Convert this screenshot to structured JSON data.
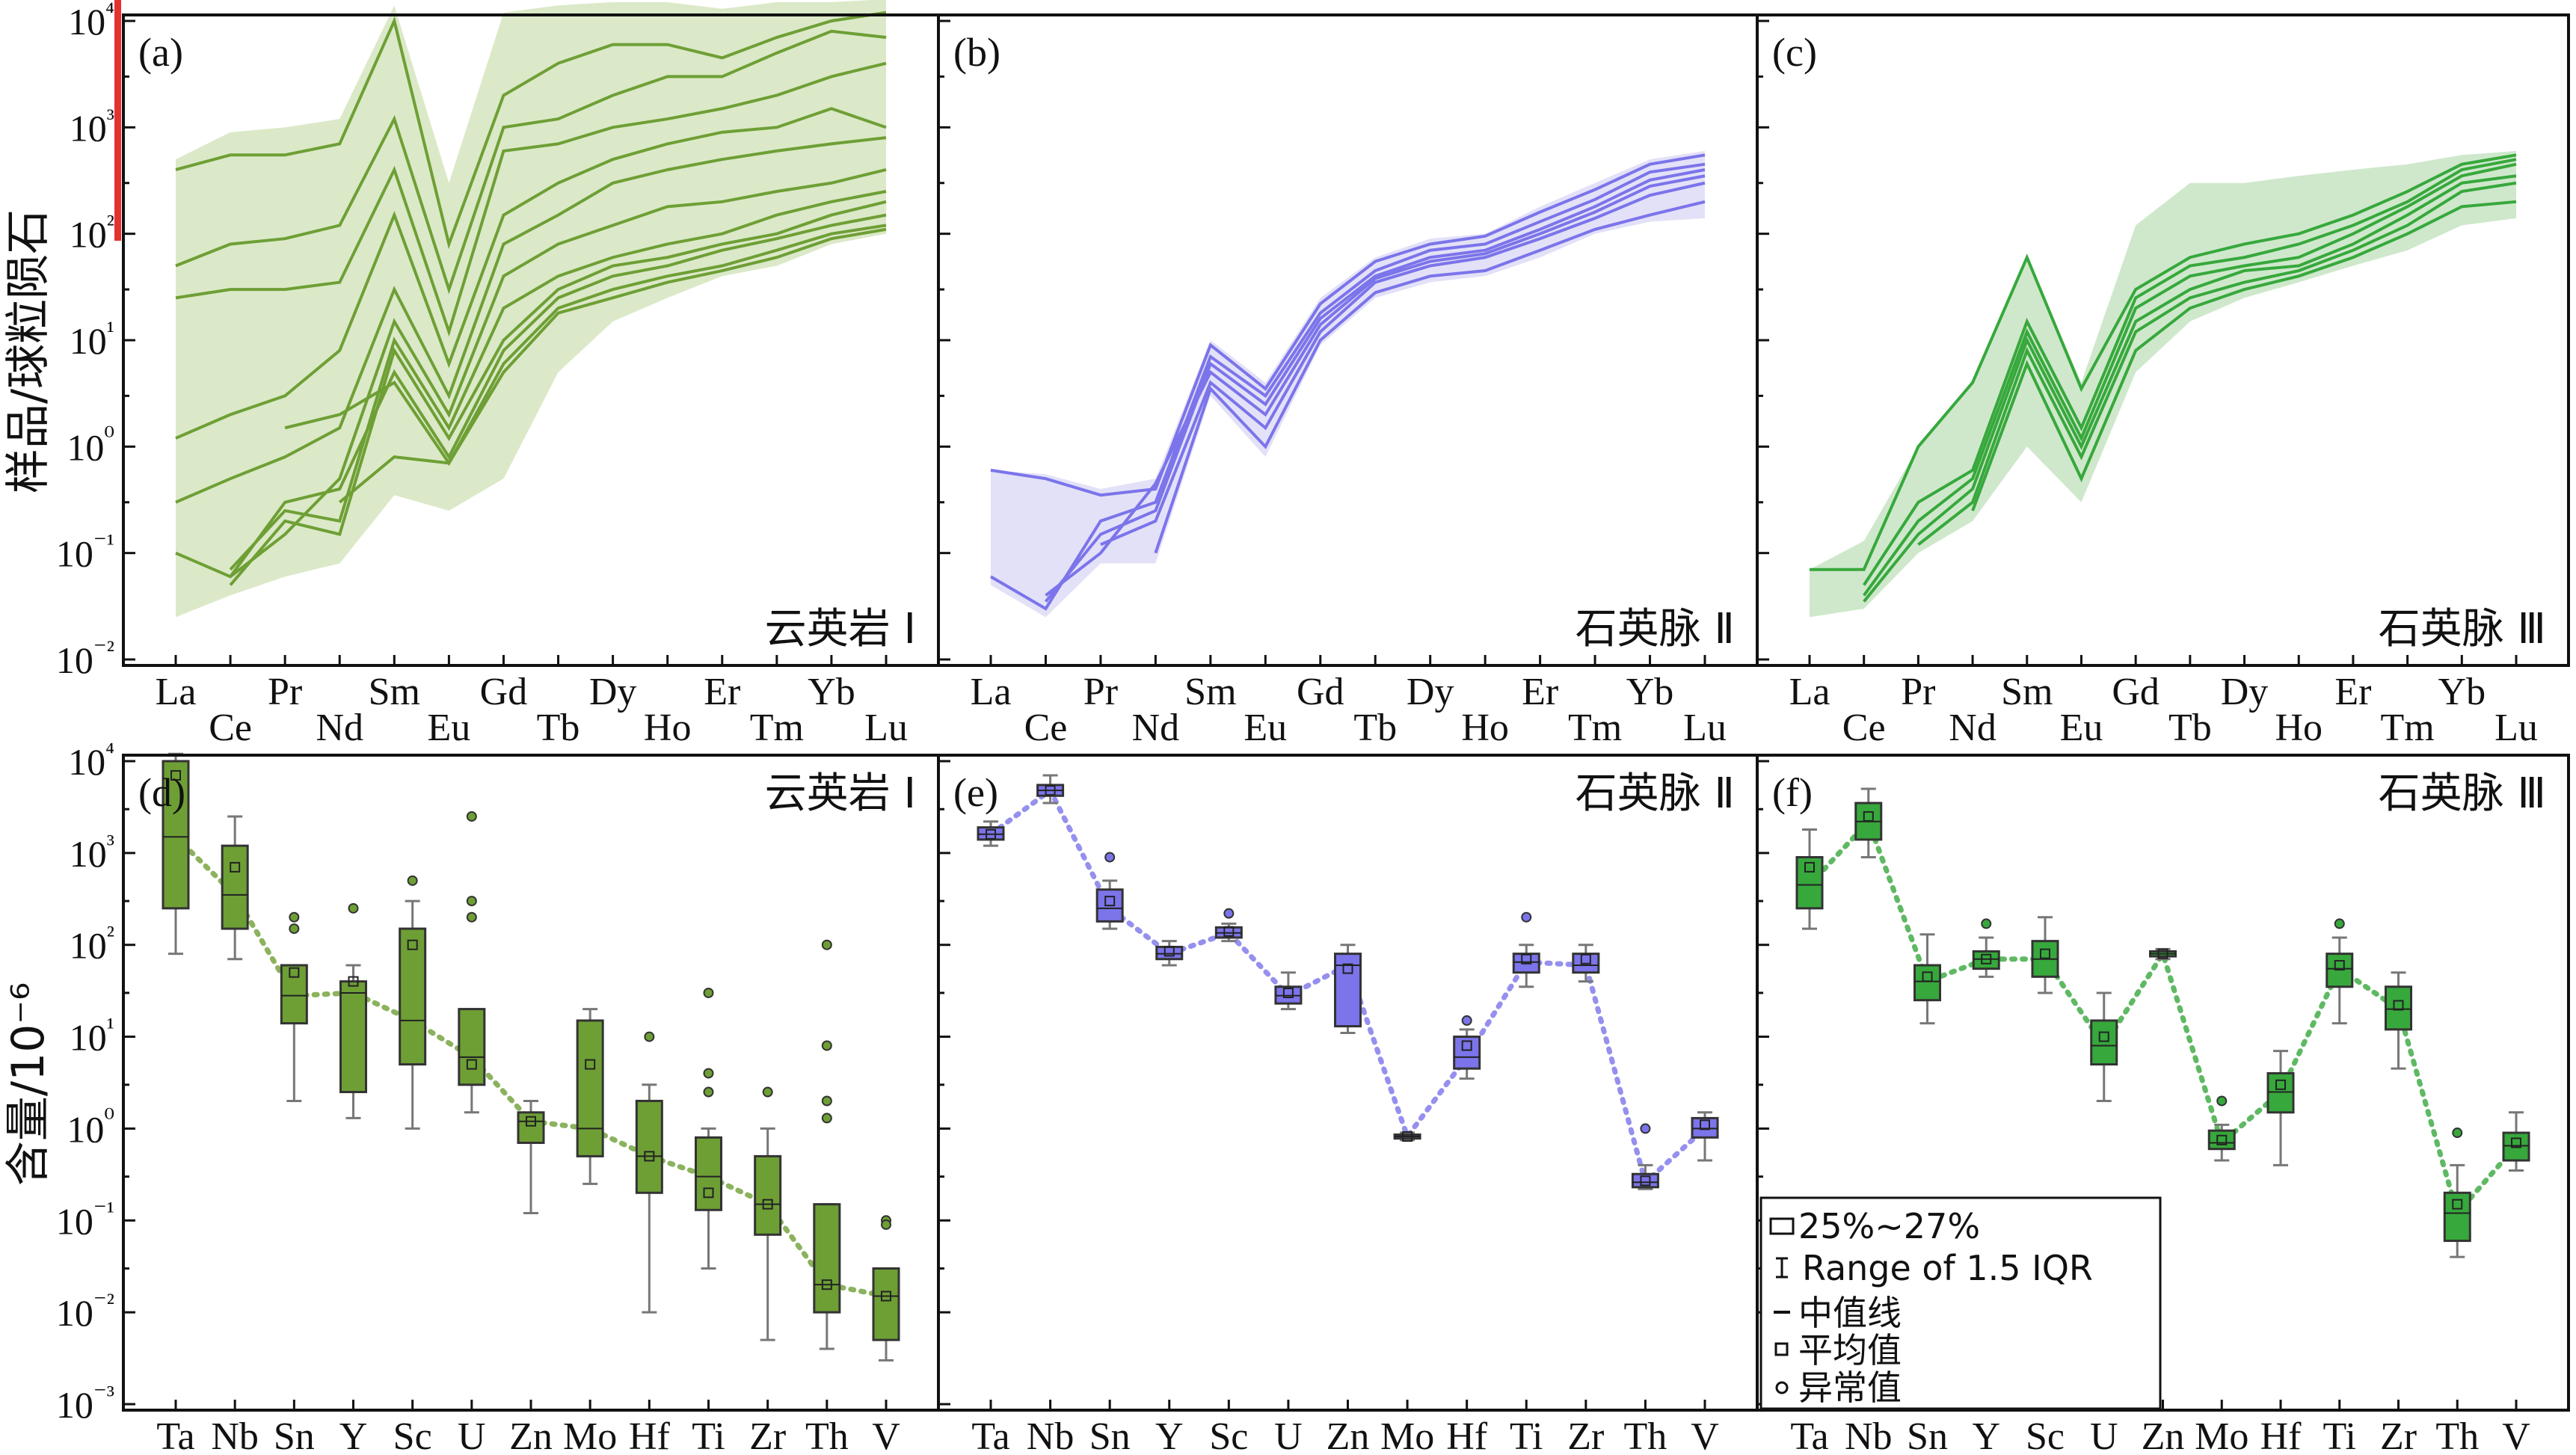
{
  "colors": {
    "green": "#6e9f35",
    "green_fill": "#dbe9c8",
    "purple": "#7b74ea",
    "purple_fill": "#e3e1f8",
    "bright_green": "#37a83c",
    "bright_green_fill": "#cfe8cc",
    "cursor_red": "#e53030"
  },
  "chart_data": [
    {
      "id": "a",
      "type": "line",
      "panel_label": "(a)",
      "rock_label": "云英岩 Ⅰ",
      "ylabel": "样品/球粒陨石",
      "yscale": "log",
      "ylim": [
        0.01,
        10000
      ],
      "y_ticks": [
        "10⁴",
        "10³",
        "10²",
        "10¹",
        "10⁰",
        "10⁻¹",
        "10⁻²"
      ],
      "categories": [
        "La",
        "Ce",
        "Pr",
        "Nd",
        "Sm",
        "Eu",
        "Gd",
        "Tb",
        "Dy",
        "Ho",
        "Er",
        "Tm",
        "Yb",
        "Lu"
      ],
      "envelope_max": [
        500,
        900,
        1000,
        1200,
        14000,
        300,
        12000,
        14000,
        15000,
        15000,
        13000,
        15000,
        15000,
        16000
      ],
      "envelope_min": [
        0.025,
        0.04,
        0.06,
        0.08,
        0.35,
        0.25,
        0.5,
        5,
        15,
        25,
        40,
        50,
        80,
        100
      ],
      "series": [
        {
          "values": [
            400,
            550,
            550,
            700,
            10000,
            80,
            2000,
            4000,
            6000,
            6000,
            4500,
            7000,
            10000,
            12000
          ]
        },
        {
          "values": [
            50,
            80,
            90,
            120,
            1200,
            30,
            1000,
            1200,
            2000,
            3000,
            3000,
            5000,
            8000,
            7000
          ]
        },
        {
          "values": [
            25,
            30,
            30,
            35,
            400,
            12,
            600,
            700,
            1000,
            1200,
            1500,
            2000,
            3000,
            4000
          ]
        },
        {
          "values": [
            1.2,
            2,
            3,
            8,
            150,
            6,
            150,
            300,
            500,
            700,
            900,
            1000,
            1500,
            1000
          ]
        },
        {
          "values": [
            0.3,
            0.5,
            0.8,
            1.5,
            30,
            3,
            80,
            150,
            300,
            400,
            500,
            600,
            700,
            800
          ]
        },
        {
          "values": [
            0.1,
            0.06,
            0.15,
            0.5,
            15,
            2,
            40,
            80,
            120,
            180,
            200,
            250,
            300,
            400
          ]
        },
        {
          "values": [
            null,
            0.07,
            0.25,
            0.2,
            10,
            1.5,
            20,
            40,
            60,
            80,
            100,
            150,
            200,
            250
          ]
        },
        {
          "values": [
            null,
            0.05,
            0.2,
            0.15,
            8,
            1.2,
            10,
            30,
            50,
            60,
            80,
            100,
            150,
            200
          ]
        },
        {
          "values": [
            null,
            0.06,
            0.3,
            0.4,
            5,
            0.8,
            8,
            25,
            40,
            50,
            70,
            90,
            120,
            150
          ]
        },
        {
          "values": [
            null,
            null,
            1.5,
            2,
            4,
            0.7,
            6,
            20,
            30,
            40,
            50,
            70,
            100,
            120
          ]
        },
        {
          "values": [
            null,
            null,
            null,
            0.3,
            0.8,
            0.7,
            5,
            18,
            25,
            35,
            45,
            60,
            90,
            110
          ]
        }
      ]
    },
    {
      "id": "b",
      "type": "line",
      "panel_label": "(b)",
      "rock_label": "石英脉 Ⅱ",
      "yscale": "log",
      "ylim": [
        0.01,
        10000
      ],
      "categories": [
        "La",
        "Ce",
        "Pr",
        "Nd",
        "Sm",
        "Eu",
        "Gd",
        "Tb",
        "Dy",
        "Ho",
        "Er",
        "Tm",
        "Yb",
        "Lu"
      ],
      "envelope_max": [
        0.6,
        0.55,
        0.4,
        0.5,
        10,
        4,
        25,
        60,
        90,
        100,
        180,
        300,
        500,
        600
      ],
      "envelope_min": [
        0.05,
        0.025,
        0.08,
        0.08,
        3,
        0.8,
        9,
        25,
        35,
        40,
        60,
        100,
        130,
        140
      ],
      "series": [
        {
          "values": [
            0.6,
            0.5,
            0.35,
            0.4,
            9,
            3.5,
            22,
            55,
            80,
            95,
            160,
            260,
            450,
            550
          ]
        },
        {
          "values": [
            0.06,
            0.03,
            0.2,
            0.3,
            7,
            3,
            18,
            45,
            70,
            80,
            130,
            210,
            380,
            450
          ]
        },
        {
          "values": [
            null,
            0.035,
            0.15,
            0.25,
            6,
            2.5,
            16,
            40,
            60,
            70,
            110,
            180,
            320,
            400
          ]
        },
        {
          "values": [
            null,
            0.04,
            0.1,
            0.45,
            5,
            2,
            14,
            38,
            55,
            65,
            100,
            160,
            280,
            350
          ]
        },
        {
          "values": [
            null,
            null,
            0.12,
            0.2,
            4,
            1.5,
            12,
            35,
            50,
            60,
            90,
            140,
            230,
            300
          ]
        },
        {
          "values": [
            null,
            null,
            null,
            0.1,
            3.5,
            1,
            10,
            28,
            40,
            45,
            70,
            110,
            150,
            200
          ]
        }
      ]
    },
    {
      "id": "c",
      "type": "line",
      "panel_label": "(c)",
      "rock_label": "石英脉 Ⅲ",
      "yscale": "log",
      "ylim": [
        0.01,
        10000
      ],
      "categories": [
        "La",
        "Ce",
        "Pr",
        "Nd",
        "Sm",
        "Eu",
        "Gd",
        "Tb",
        "Dy",
        "Ho",
        "Er",
        "Tm",
        "Yb",
        "Lu"
      ],
      "envelope_max": [
        0.07,
        0.13,
        1,
        4,
        60,
        4,
        120,
        300,
        300,
        350,
        400,
        450,
        550,
        600
      ],
      "envelope_min": [
        0.025,
        0.03,
        0.1,
        0.2,
        1,
        0.3,
        5,
        15,
        25,
        35,
        50,
        70,
        120,
        140
      ],
      "series": [
        {
          "values": [
            0.07,
            0.07,
            1,
            4,
            60,
            3.5,
            30,
            60,
            80,
            100,
            150,
            250,
            450,
            550
          ]
        },
        {
          "values": [
            null,
            0.05,
            0.3,
            0.6,
            15,
            1.5,
            25,
            50,
            60,
            80,
            120,
            200,
            400,
            500
          ]
        },
        {
          "values": [
            null,
            0.04,
            0.2,
            0.5,
            12,
            1.2,
            20,
            40,
            50,
            60,
            100,
            180,
            350,
            450
          ]
        },
        {
          "values": [
            null,
            0.035,
            0.15,
            0.4,
            10,
            1,
            15,
            30,
            45,
            50,
            80,
            150,
            300,
            350
          ]
        },
        {
          "values": [
            null,
            null,
            0.12,
            0.3,
            8,
            0.8,
            12,
            25,
            35,
            45,
            70,
            120,
            250,
            300
          ]
        },
        {
          "values": [
            null,
            null,
            null,
            0.25,
            6,
            0.5,
            8,
            20,
            30,
            40,
            60,
            100,
            180,
            200
          ]
        }
      ]
    },
    {
      "id": "d",
      "type": "box",
      "panel_label": "(d)",
      "rock_label": "云英岩 Ⅰ",
      "ylabel": "含量/10⁻⁶",
      "yscale": "log",
      "ylim": [
        0.001,
        10000
      ],
      "y_ticks": [
        "10⁴",
        "10³",
        "10²",
        "10¹",
        "10⁰",
        "10⁻¹",
        "10⁻²",
        "10⁻³"
      ],
      "categories": [
        "Ta",
        "Nb",
        "Sn",
        "Y",
        "Sc",
        "U",
        "Zn",
        "Mo",
        "Hf",
        "Ti",
        "Zr",
        "Th",
        "V"
      ],
      "boxes": [
        {
          "min": 80,
          "q1": 250,
          "median": 1500,
          "q3": 10000,
          "max": 12000,
          "mean": 7000,
          "outliers": []
        },
        {
          "min": 70,
          "q1": 150,
          "median": 350,
          "q3": 1200,
          "max": 2500,
          "mean": 700,
          "outliers": []
        },
        {
          "min": 2,
          "q1": 14,
          "median": 28,
          "q3": 60,
          "max": 60,
          "mean": 50,
          "outliers": [
            150,
            200
          ]
        },
        {
          "min": 1.3,
          "q1": 2.5,
          "median": 30,
          "q3": 40,
          "max": 60,
          "mean": 40,
          "outliers": [
            250
          ]
        },
        {
          "min": 1,
          "q1": 5,
          "median": 15,
          "q3": 150,
          "max": 300,
          "mean": 100,
          "outliers": [
            500
          ]
        },
        {
          "min": 1.5,
          "q1": 3,
          "median": 6,
          "q3": 20,
          "max": 20,
          "mean": 5,
          "outliers": [
            2500,
            300,
            200
          ]
        },
        {
          "min": 0.12,
          "q1": 0.7,
          "median": 1.2,
          "q3": 1.5,
          "max": 2,
          "mean": 1.2,
          "outliers": []
        },
        {
          "min": 0.25,
          "q1": 0.5,
          "median": 1,
          "q3": 15,
          "max": 20,
          "mean": 5,
          "outliers": []
        },
        {
          "min": 0.01,
          "q1": 0.2,
          "median": 0.5,
          "q3": 2,
          "max": 3,
          "mean": 0.5,
          "outliers": [
            10
          ]
        },
        {
          "min": 0.03,
          "q1": 0.13,
          "median": 0.3,
          "q3": 0.8,
          "max": 1,
          "mean": 0.2,
          "outliers": [
            30,
            4,
            2.5
          ]
        },
        {
          "min": 0.005,
          "q1": 0.07,
          "median": 0.15,
          "q3": 0.5,
          "max": 1,
          "mean": 0.15,
          "outliers": [
            2.5
          ]
        },
        {
          "min": 0.004,
          "q1": 0.01,
          "median": 0.02,
          "q3": 0.15,
          "max": 0.15,
          "mean": 0.02,
          "outliers": [
            100,
            8,
            2,
            1.3
          ]
        },
        {
          "min": 0.003,
          "q1": 0.005,
          "median": 0.015,
          "q3": 0.03,
          "max": 0.03,
          "mean": 0.015,
          "outliers": [
            0.1,
            0.09
          ]
        }
      ]
    },
    {
      "id": "e",
      "type": "box",
      "panel_label": "(e)",
      "rock_label": "石英脉 Ⅱ",
      "yscale": "log",
      "ylim": [
        0.001,
        10000
      ],
      "categories": [
        "Ta",
        "Nb",
        "Sn",
        "Y",
        "Sc",
        "U",
        "Zn",
        "Mo",
        "Hf",
        "Ti",
        "Zr",
        "Th",
        "V"
      ],
      "boxes": [
        {
          "min": 1200,
          "q1": 1400,
          "median": 1600,
          "q3": 1900,
          "max": 2200,
          "mean": 1600,
          "outliers": []
        },
        {
          "min": 3500,
          "q1": 4200,
          "median": 4800,
          "q3": 5500,
          "max": 7000,
          "mean": 4800,
          "outliers": []
        },
        {
          "min": 150,
          "q1": 180,
          "median": 250,
          "q3": 400,
          "max": 500,
          "mean": 300,
          "outliers": [
            900
          ]
        },
        {
          "min": 60,
          "q1": 70,
          "median": 80,
          "q3": 95,
          "max": 110,
          "mean": 85,
          "outliers": []
        },
        {
          "min": 110,
          "q1": 120,
          "median": 135,
          "q3": 155,
          "max": 170,
          "mean": 140,
          "outliers": [
            220
          ]
        },
        {
          "min": 20,
          "q1": 23,
          "median": 28,
          "q3": 35,
          "max": 50,
          "mean": 30,
          "outliers": []
        },
        {
          "min": 11,
          "q1": 13,
          "median": 60,
          "q3": 80,
          "max": 100,
          "mean": 55,
          "outliers": []
        },
        {
          "min": 0.75,
          "q1": 0.78,
          "median": 0.82,
          "q3": 0.86,
          "max": 0.9,
          "mean": 0.82,
          "outliers": []
        },
        {
          "min": 3.5,
          "q1": 4.5,
          "median": 6,
          "q3": 10,
          "max": 12,
          "mean": 8,
          "outliers": [
            15
          ]
        },
        {
          "min": 35,
          "q1": 50,
          "median": 65,
          "q3": 80,
          "max": 100,
          "mean": 70,
          "outliers": [
            200
          ]
        },
        {
          "min": 40,
          "q1": 50,
          "median": 60,
          "q3": 80,
          "max": 100,
          "mean": 70,
          "outliers": []
        },
        {
          "min": 0.22,
          "q1": 0.23,
          "median": 0.26,
          "q3": 0.32,
          "max": 0.4,
          "mean": 0.27,
          "outliers": [
            1
          ]
        },
        {
          "min": 0.45,
          "q1": 0.8,
          "median": 1,
          "q3": 1.3,
          "max": 1.5,
          "mean": 1.1,
          "outliers": []
        }
      ]
    },
    {
      "id": "f",
      "type": "box",
      "panel_label": "(f)",
      "rock_label": "石英脉 Ⅲ",
      "yscale": "log",
      "ylim": [
        0.001,
        10000
      ],
      "categories": [
        "Ta",
        "Nb",
        "Sn",
        "Y",
        "Sc",
        "U",
        "Zn",
        "Mo",
        "Hf",
        "Ti",
        "Zr",
        "Th",
        "V"
      ],
      "boxes": [
        {
          "min": 150,
          "q1": 250,
          "median": 450,
          "q3": 900,
          "max": 1800,
          "mean": 700,
          "outliers": []
        },
        {
          "min": 900,
          "q1": 1400,
          "median": 2200,
          "q3": 3500,
          "max": 5000,
          "mean": 2500,
          "outliers": []
        },
        {
          "min": 14,
          "q1": 25,
          "median": 40,
          "q3": 60,
          "max": 130,
          "mean": 45,
          "outliers": []
        },
        {
          "min": 45,
          "q1": 55,
          "median": 70,
          "q3": 85,
          "max": 120,
          "mean": 70,
          "outliers": [
            170
          ]
        },
        {
          "min": 30,
          "q1": 45,
          "median": 70,
          "q3": 110,
          "max": 200,
          "mean": 80,
          "outliers": []
        },
        {
          "min": 2,
          "q1": 5,
          "median": 8,
          "q3": 15,
          "max": 30,
          "mean": 10,
          "outliers": []
        },
        {
          "min": 70,
          "q1": 75,
          "median": 80,
          "q3": 85,
          "max": 90,
          "mean": 80,
          "outliers": []
        },
        {
          "min": 0.45,
          "q1": 0.6,
          "median": 0.7,
          "q3": 0.95,
          "max": 1.1,
          "mean": 0.75,
          "outliers": [
            2
          ]
        },
        {
          "min": 0.4,
          "q1": 1.5,
          "median": 2.5,
          "q3": 4,
          "max": 7,
          "mean": 3,
          "outliers": []
        },
        {
          "min": 14,
          "q1": 35,
          "median": 55,
          "q3": 80,
          "max": 120,
          "mean": 60,
          "outliers": [
            170
          ]
        },
        {
          "min": 4.5,
          "q1": 12,
          "median": 20,
          "q3": 35,
          "max": 50,
          "mean": 22,
          "outliers": []
        },
        {
          "min": 0.04,
          "q1": 0.06,
          "median": 0.12,
          "q3": 0.2,
          "max": 0.4,
          "mean": 0.15,
          "outliers": [
            0.9
          ]
        },
        {
          "min": 0.35,
          "q1": 0.45,
          "median": 0.65,
          "q3": 0.9,
          "max": 1.5,
          "mean": 0.7,
          "outliers": []
        }
      ]
    }
  ],
  "legend": {
    "box": "25%~27%",
    "whisker": "Range of 1.5 IQR",
    "median": "中值线",
    "mean": "平均值",
    "outlier": "异常值"
  }
}
